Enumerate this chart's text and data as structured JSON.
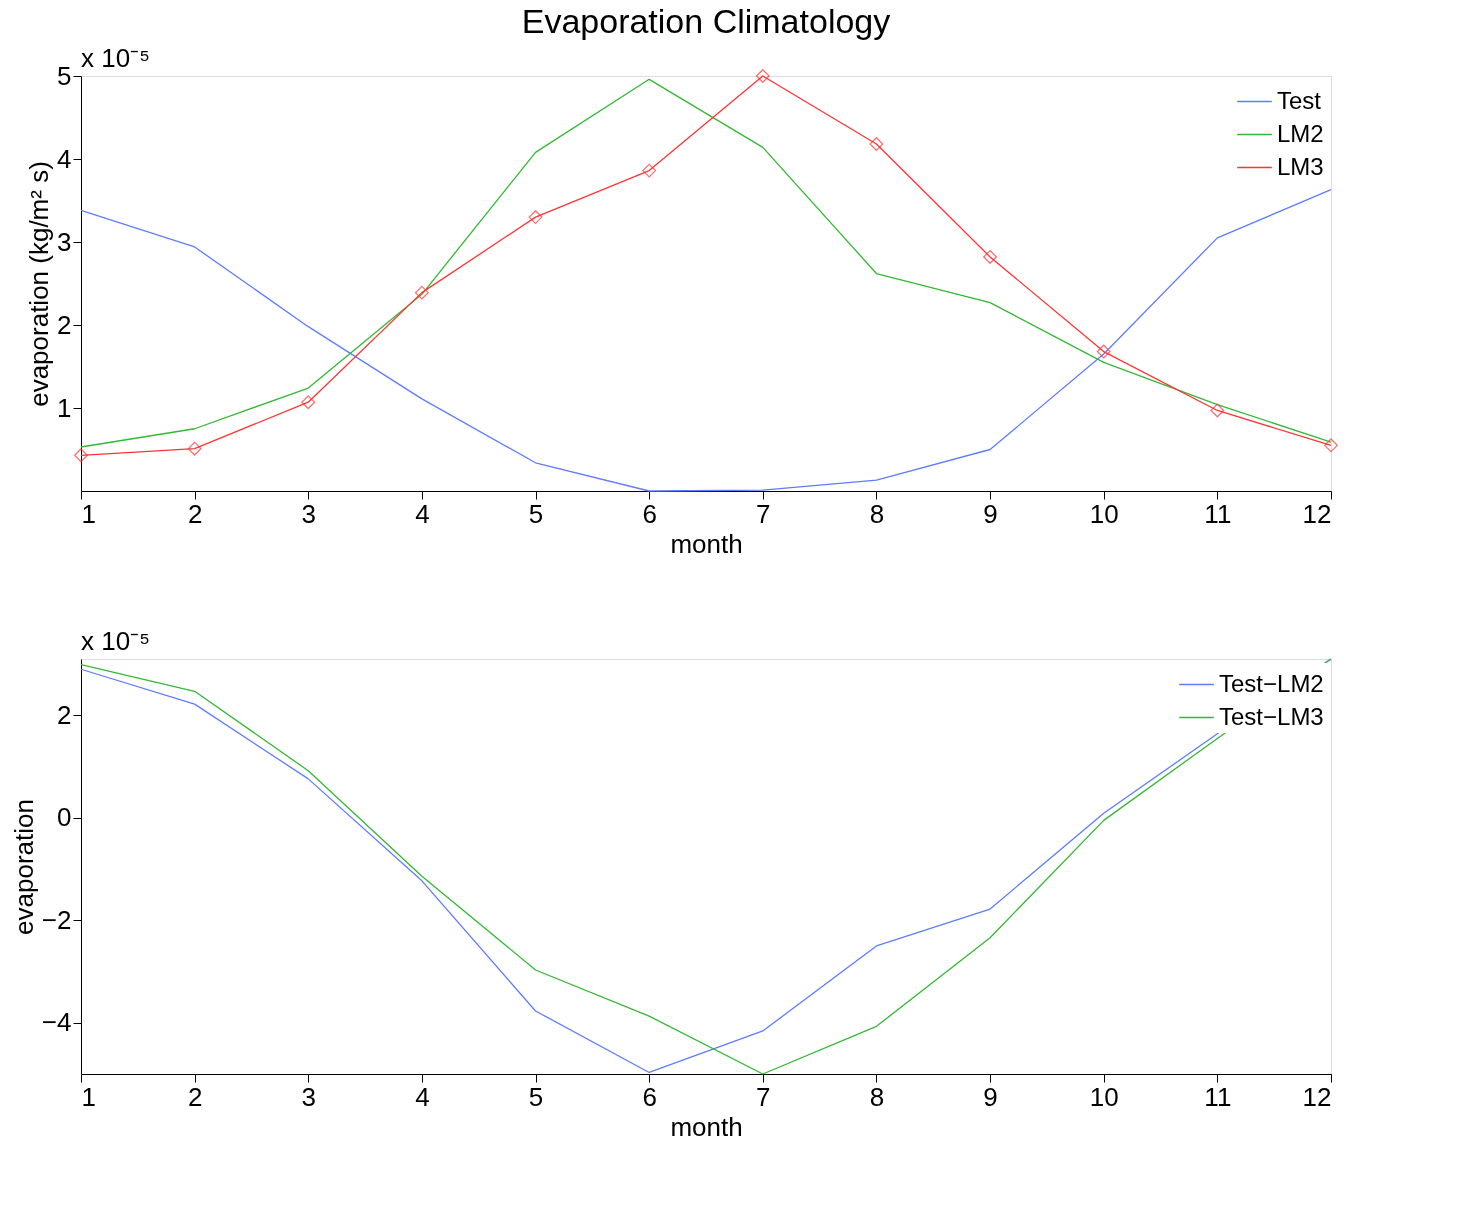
{
  "chart_data": [
    {
      "type": "line",
      "title": "Evaporation Climatology",
      "xlabel": "month",
      "ylabel": "evaporation  (kg/m² s)",
      "annotations": [
        "x 10⁻⁵"
      ],
      "x": [
        1,
        2,
        3,
        4,
        5,
        6,
        7,
        8,
        9,
        10,
        11,
        12
      ],
      "xlim": [
        1,
        12
      ],
      "xticks": [
        1,
        2,
        3,
        4,
        5,
        6,
        7,
        8,
        9,
        10,
        11,
        12
      ],
      "ylim": [
        0,
        5
      ],
      "yticks": [
        1,
        2,
        3,
        4,
        5
      ],
      "grid": false,
      "legend": "top right",
      "series": [
        {
          "name": "Test",
          "color": "#5f7cff",
          "marker": "none",
          "values": [
            3.38,
            2.94,
            1.98,
            1.11,
            0.34,
            0.0,
            0.01,
            0.13,
            0.5,
            1.65,
            3.05,
            3.63
          ]
        },
        {
          "name": "LM2",
          "color": "#33b833",
          "marker": "none",
          "values": [
            0.53,
            0.75,
            1.24,
            2.37,
            4.08,
            4.96,
            4.14,
            2.62,
            2.27,
            1.55,
            1.04,
            0.59
          ]
        },
        {
          "name": "LM3",
          "color": "#ff3333",
          "marker": "diamond",
          "values": [
            0.43,
            0.51,
            1.07,
            2.39,
            3.3,
            3.86,
            5.0,
            4.18,
            2.82,
            1.68,
            0.97,
            0.55
          ]
        }
      ]
    },
    {
      "type": "line",
      "xlabel": "month",
      "ylabel": "evaporation",
      "annotations": [
        "x 10⁻⁵"
      ],
      "x": [
        1,
        2,
        3,
        4,
        5,
        6,
        7,
        8,
        9,
        10,
        11,
        12
      ],
      "xlim": [
        1,
        12
      ],
      "xticks": [
        1,
        2,
        3,
        4,
        5,
        6,
        7,
        8,
        9,
        10,
        11,
        12
      ],
      "ylim": [
        -5,
        3.1
      ],
      "yticks": [
        -4,
        -2,
        0,
        2
      ],
      "grid": false,
      "legend": "top right",
      "series": [
        {
          "name": "Test−LM2",
          "color": "#5f7cff",
          "values": [
            2.9,
            2.22,
            0.76,
            -1.23,
            -3.77,
            -4.97,
            -4.16,
            -2.5,
            -1.78,
            0.09,
            1.64,
            3.1
          ]
        },
        {
          "name": "Test−LM3",
          "color": "#33b833",
          "values": [
            2.99,
            2.47,
            0.92,
            -1.14,
            -2.97,
            -3.87,
            -5.0,
            -4.07,
            -2.34,
            -0.05,
            1.55,
            3.1
          ]
        }
      ]
    }
  ]
}
